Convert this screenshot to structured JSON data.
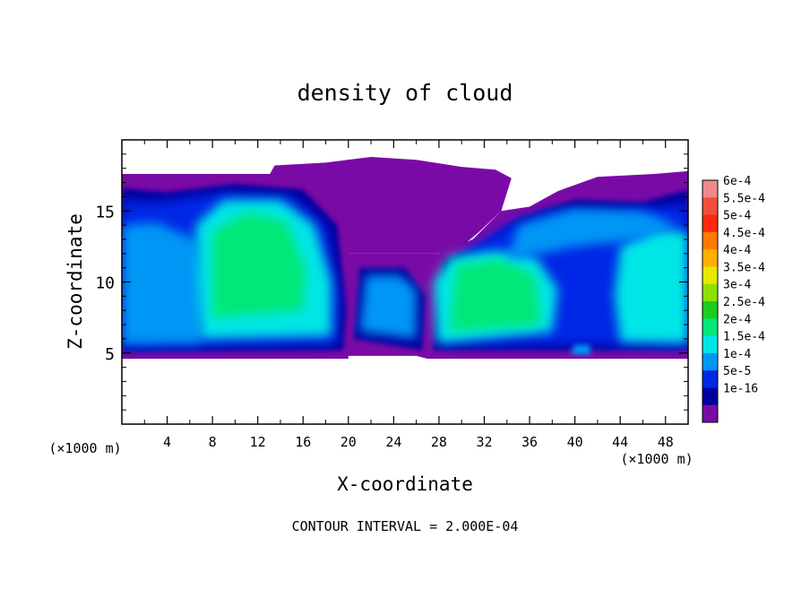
{
  "chart_data": {
    "type": "heatmap",
    "title": "density of cloud",
    "xlabel": "X-coordinate",
    "ylabel": "Z-coordinate",
    "x_unit_label": "(×1000 m)",
    "z_unit_label": "(×1000 m)",
    "footer": "CONTOUR INTERVAL = 2.000E-04",
    "xlim": [
      0,
      50
    ],
    "ylim": [
      0,
      20
    ],
    "x_ticks": [
      4,
      8,
      12,
      16,
      20,
      24,
      28,
      32,
      36,
      40,
      44,
      48
    ],
    "y_ticks": [
      5,
      10,
      15
    ],
    "grid": false,
    "colorbar": {
      "placement": "right",
      "levels": [
        {
          "label": "6e-4",
          "color": "#f08a8a"
        },
        {
          "label": "5.5e-4",
          "color": "#f24e3c"
        },
        {
          "label": "5e-4",
          "color": "#ff2a0a"
        },
        {
          "label": "4.5e-4",
          "color": "#ff7a00"
        },
        {
          "label": "4e-4",
          "color": "#ffb000"
        },
        {
          "label": "3.5e-4",
          "color": "#e8e800"
        },
        {
          "label": "3e-4",
          "color": "#8ee000"
        },
        {
          "label": "2.5e-4",
          "color": "#1ecc1e"
        },
        {
          "label": "2e-4",
          "color": "#00e878"
        },
        {
          "label": "1.5e-4",
          "color": "#00e6e6"
        },
        {
          "label": "1e-4",
          "color": "#0096f5"
        },
        {
          "label": "5e-5",
          "color": "#0028e6"
        },
        {
          "label": "1e-16",
          "color": "#00009e"
        },
        {
          "label": "",
          "color": "#7a0aa6"
        }
      ]
    },
    "cloud_regions": [
      {
        "name": "left-cloud-base",
        "level": "1e-16",
        "x": [
          0,
          20
        ],
        "z": [
          4.6,
          17.6
        ]
      },
      {
        "name": "upper-middle-cloud",
        "level": "1e-16",
        "x": [
          13,
          34
        ],
        "z": [
          12,
          18.8
        ]
      },
      {
        "name": "middle-cloud",
        "level": "1e-16",
        "x": [
          20,
          28
        ],
        "z": [
          4.8,
          12
        ]
      },
      {
        "name": "right-cloud-base",
        "level": "1e-16",
        "x": [
          27,
          50
        ],
        "z": [
          4.6,
          17.8
        ]
      },
      {
        "name": "left-core-a",
        "level": "1.5e-4",
        "x": [
          0,
          7.5
        ],
        "z": [
          5.2,
          14
        ]
      },
      {
        "name": "left-core-b",
        "level": "2e-4",
        "x": [
          6,
          20
        ],
        "z": [
          6,
          16.5
        ]
      },
      {
        "name": "middle-core",
        "level": "1e-4",
        "x": [
          20,
          27
        ],
        "z": [
          6,
          11
        ]
      },
      {
        "name": "right-core-a",
        "level": "2e-4",
        "x": [
          27,
          39
        ],
        "z": [
          5.5,
          12.5
        ]
      },
      {
        "name": "right-core-b",
        "level": "1.5e-4",
        "x": [
          43,
          50
        ],
        "z": [
          5.2,
          13.5
        ]
      },
      {
        "name": "right-upper",
        "level": "5e-5",
        "x": [
          33,
          50
        ],
        "z": [
          11,
          15.5
        ]
      }
    ]
  }
}
